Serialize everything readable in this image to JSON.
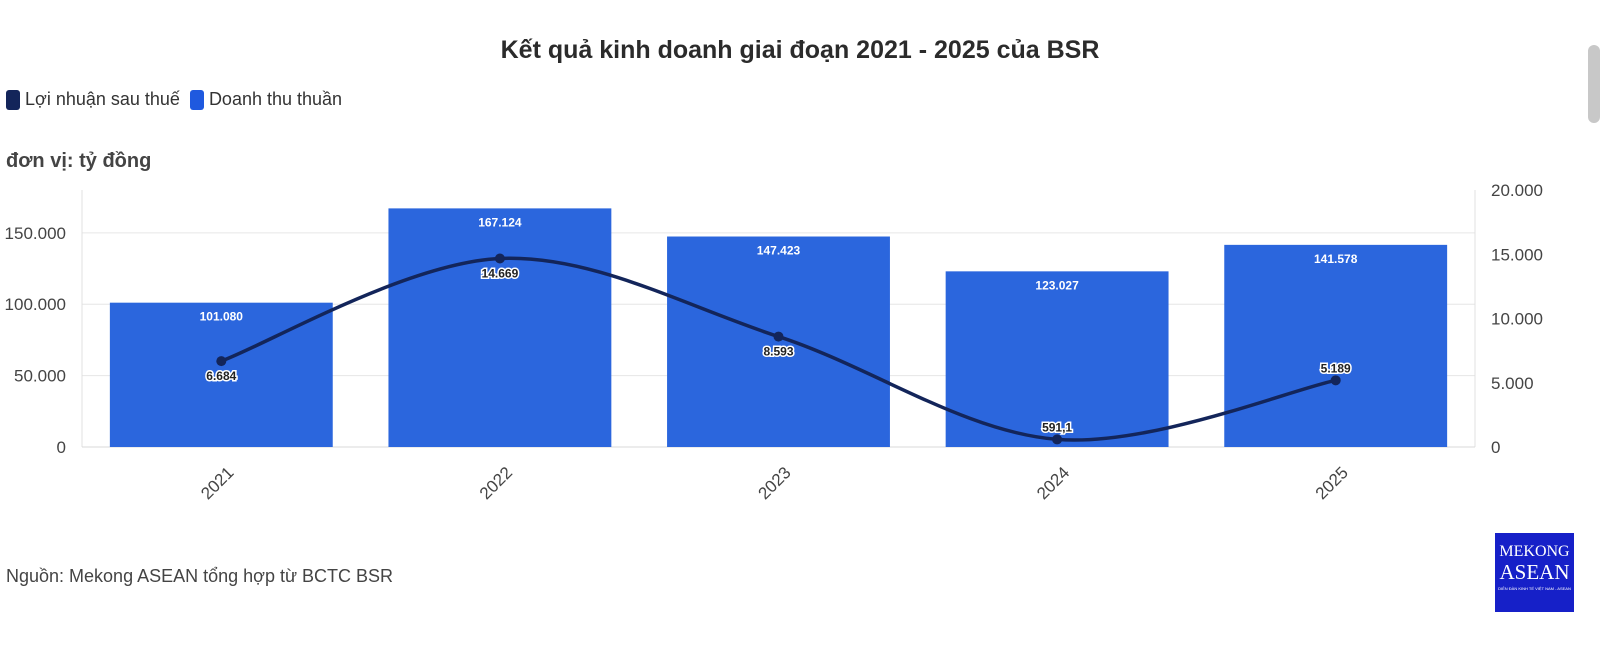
{
  "title": "Kết quả kinh doanh giai đoạn 2021 - 2025 của BSR",
  "legend": [
    {
      "label": "Lợi nhuận sau thuế",
      "color": "#13255a"
    },
    {
      "label": "Doanh thu thuần",
      "color": "#1f59df"
    }
  ],
  "unit_label": "đơn vị: tỷ đồng",
  "source": "Nguồn: Mekong ASEAN tổng hợp từ BCTC BSR",
  "logo": {
    "line1": "MEKONG",
    "line2": "ASEAN",
    "tagline": "DIỄN ĐÀN KINH TẾ VIỆT NAM - ASEAN"
  },
  "chart_data": {
    "type": "bar",
    "categories": [
      "2021",
      "2022",
      "2023",
      "2024",
      "2025"
    ],
    "series": [
      {
        "name": "Doanh thu thuần",
        "type": "bar",
        "axis": "left",
        "color": "#2b66dd",
        "values": [
          101080,
          167124,
          147423,
          123027,
          141578
        ],
        "labels": [
          "101.080",
          "167.124",
          "147.423",
          "123.027",
          "141.578"
        ]
      },
      {
        "name": "Lợi nhuận sau thuế",
        "type": "line",
        "axis": "right",
        "color": "#13255a",
        "values": [
          6684,
          14669,
          8593,
          591.1,
          5189
        ],
        "labels": [
          "6.684",
          "14.669",
          "8.593",
          "591,1",
          "5.189"
        ]
      }
    ],
    "y_left": {
      "ylim": [
        0,
        180000
      ],
      "ticks": [
        0,
        50000,
        100000,
        150000
      ],
      "tick_labels": [
        "0",
        "50.000",
        "100.000",
        "150.000"
      ]
    },
    "y_right": {
      "ylim": [
        0,
        20000
      ],
      "ticks": [
        0,
        5000,
        10000,
        15000,
        20000
      ],
      "tick_labels": [
        "0",
        "5.000",
        "10.000",
        "15.000",
        "20.000"
      ]
    },
    "grid": true,
    "legend_position": "top-left"
  }
}
